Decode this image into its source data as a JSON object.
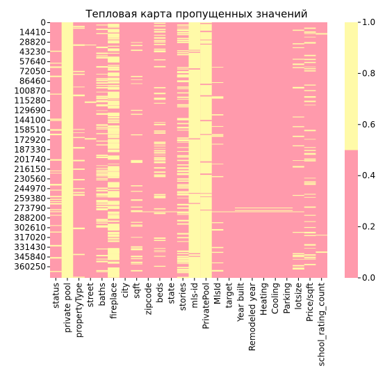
{
  "chart_data": {
    "type": "heatmap",
    "title": "Тепловая карта пропущенных значений",
    "xlabel": "",
    "ylabel": "",
    "x_categories": [
      "status",
      "private pool",
      "propertyType",
      "street",
      "baths",
      "fireplace",
      "city",
      "sqft",
      "zipcode",
      "beds",
      "state",
      "stories",
      "mls-id",
      "PrivatePool",
      "MlsId",
      "target",
      "Year built",
      "Remodeled year",
      "Heating",
      "Cooling",
      "Parking",
      "lotsize",
      "Price/sqft",
      "school_rating_count"
    ],
    "y_tick_labels": [
      "0",
      "14410",
      "28820",
      "43230",
      "57640",
      "72050",
      "86460",
      "100870",
      "115280",
      "129690",
      "144100",
      "158510",
      "172920",
      "187330",
      "201740",
      "216150",
      "230560",
      "244970",
      "259380",
      "273790",
      "288200",
      "302610",
      "317020",
      "331430",
      "345840",
      "360250"
    ],
    "row_count": 377185,
    "column_missing_fraction": [
      0.11,
      0.99,
      0.09,
      0.01,
      0.28,
      0.73,
      0.0,
      0.11,
      0.0,
      0.24,
      0.0,
      0.4,
      0.93,
      0.89,
      0.07,
      0.0,
      0.0,
      0.0,
      0.0,
      0.0,
      0.0,
      0.09,
      0.18,
      0.01
    ],
    "colorbar": {
      "min": 0.0,
      "max": 1.0,
      "ticks": [
        "0.0",
        "0.2",
        "0.4",
        "0.6",
        "0.8",
        "1.0"
      ],
      "missing_color": "#fffaa8",
      "present_color": "#ff9aac"
    },
    "legend": "right"
  }
}
